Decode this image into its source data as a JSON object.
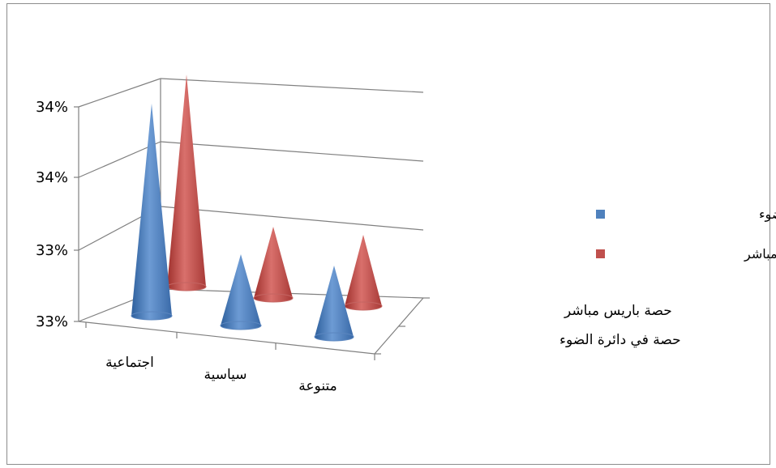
{
  "chart_data": {
    "type": "bar",
    "shape": "cone",
    "categories": [
      "اجتماعية",
      "سياسية",
      "متنوعة"
    ],
    "depth_labels": [
      "حصة في دائرة الضوء",
      "حصة باريس مباشر"
    ],
    "y_tick_labels": [
      "33%",
      "33%",
      "34%",
      "34%"
    ],
    "series": [
      {
        "name": "حصة في دائرة الضوء",
        "color": "#4f81bd",
        "values": [
          0.3395,
          0.3325,
          0.3325
        ]
      },
      {
        "name": "حصة باريس مباشر",
        "color": "#c0504d",
        "values": [
          0.3395,
          0.3325,
          0.3325
        ]
      }
    ],
    "legend": "right",
    "grid": true
  }
}
